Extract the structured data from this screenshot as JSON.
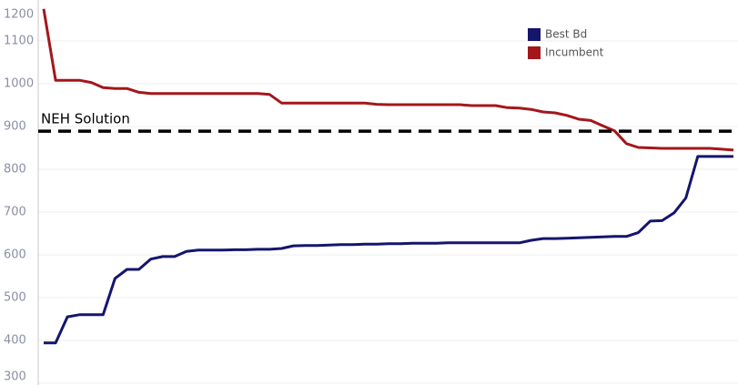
{
  "chart_data": {
    "type": "line",
    "x": [
      0,
      1,
      2,
      3,
      4,
      5,
      6,
      7,
      8,
      9,
      10,
      11,
      12,
      13,
      14,
      15,
      16,
      17,
      18,
      19,
      20,
      21,
      22,
      23,
      24,
      25,
      26,
      27,
      28,
      29,
      30,
      31,
      32,
      33,
      34,
      35,
      36,
      37,
      38,
      39,
      40,
      41,
      42,
      43,
      44,
      45,
      46,
      47,
      48,
      49,
      50,
      51,
      52,
      53,
      54,
      55,
      56,
      57,
      58
    ],
    "xlim": [
      0,
      58
    ],
    "ylim": [
      300,
      1200
    ],
    "yticks": [
      300,
      400,
      500,
      600,
      700,
      800,
      900,
      1000,
      1100,
      1200
    ],
    "grid": true,
    "legend": "top-right",
    "series": [
      {
        "name": "Best Bd",
        "color": "#15156e",
        "values": [
          394,
          394,
          455,
          460,
          460,
          460,
          545,
          566,
          566,
          590,
          596,
          596,
          608,
          611,
          611,
          611,
          612,
          612,
          613,
          613,
          615,
          621,
          622,
          622,
          623,
          624,
          624,
          625,
          625,
          626,
          626,
          627,
          627,
          627,
          628,
          628,
          628,
          628,
          628,
          628,
          628,
          634,
          638,
          638,
          639,
          640,
          641,
          642,
          643,
          643,
          652,
          679,
          680,
          698,
          733,
          830,
          830,
          830,
          830
        ]
      },
      {
        "name": "Incumbent",
        "color": "#a3171b",
        "values": [
          1175,
          1008,
          1008,
          1008,
          1003,
          991,
          989,
          989,
          980,
          977,
          977,
          977,
          977,
          977,
          977,
          977,
          977,
          977,
          977,
          975,
          955,
          955,
          955,
          955,
          955,
          955,
          955,
          955,
          952,
          951,
          951,
          951,
          951,
          951,
          951,
          951,
          949,
          949,
          949,
          944,
          943,
          940,
          934,
          932,
          926,
          917,
          914,
          902,
          890,
          860,
          851,
          850,
          849,
          849,
          849,
          849,
          849,
          847,
          845
        ]
      }
    ],
    "reference_line": {
      "label": "NEH Solution",
      "value": 889
    }
  }
}
